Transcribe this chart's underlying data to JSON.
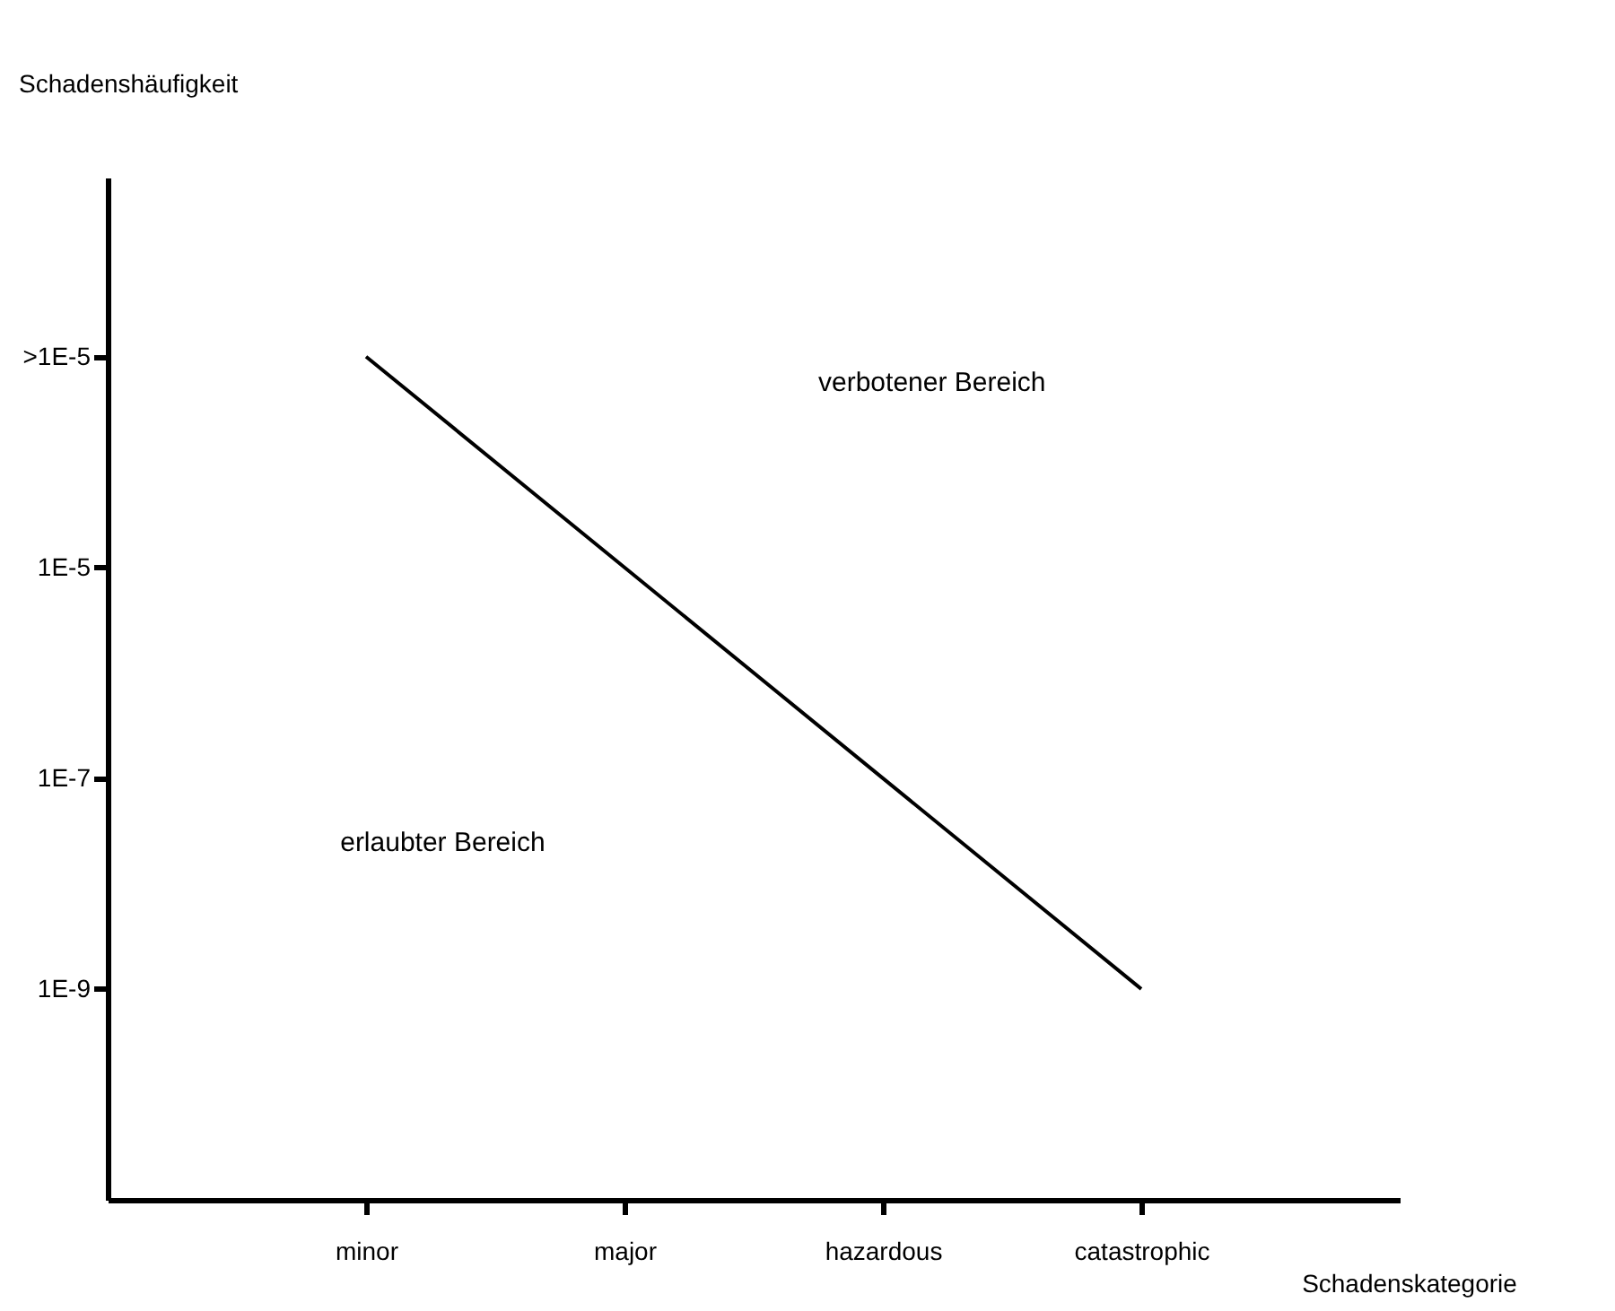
{
  "chart_data": {
    "type": "line",
    "xlabel": "Schadenskategorie",
    "ylabel": "Schadenshäufigkeit",
    "categories": [
      "minor",
      "major",
      "hazardous",
      "catastrophic"
    ],
    "values": [
      0.001,
      1e-05,
      1e-07,
      1e-09
    ],
    "color": "#000000",
    "log": "y",
    "ylim": [
      1e-11,
      0.05
    ],
    "yticks": [
      {
        "value": 0.001,
        "label": ">1E-5"
      },
      {
        "value": 1e-05,
        "label": "1E-5"
      },
      {
        "value": 1e-07,
        "label": "1E-7"
      },
      {
        "value": 1e-09,
        "label": "1E-9"
      }
    ],
    "grid": false,
    "marker": "none",
    "line_style": "solid",
    "annotations": [
      "verbotener Bereich",
      "erlaubter Bereich"
    ]
  }
}
